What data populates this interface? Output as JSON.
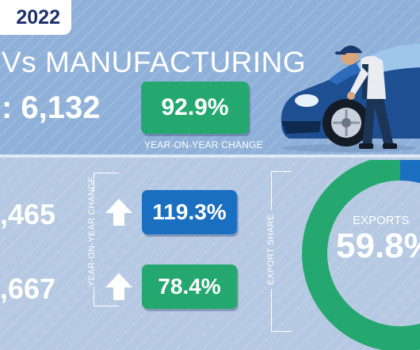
{
  "header": {
    "year": "2022",
    "headline": "Vs MANUFACTURING",
    "total": ": 6,132",
    "yoy_value": "92.9%",
    "yoy_caption": "YEAR-ON-YEAR CHANGE"
  },
  "stats": {
    "rows": [
      {
        "value": ",465",
        "change": "119.3%",
        "direction": "up",
        "pill_color": "#1b6fc0"
      },
      {
        "value": ",667",
        "change": "78.4%",
        "direction": "up",
        "pill_color": "#25a86f"
      }
    ],
    "yoy_label": "YEAR-ON-YEAR CHANGE"
  },
  "export": {
    "share_label": "EXPORT SHARE",
    "donut_label": "EXPORTS",
    "donut_value": "59.8%"
  },
  "chart_data": {
    "type": "pie",
    "categories": [
      "EXPORTS"
    ],
    "values": [
      59.8
    ],
    "colors": [
      "#25a86f",
      "#1b6fc0"
    ]
  },
  "colors": {
    "green": "#25a86f",
    "blue": "#1b6fc0",
    "navy": "#1d2f6b"
  },
  "icons": {
    "up_arrow": "up-arrow-icon",
    "illustration": "mechanic-car-illustration"
  }
}
